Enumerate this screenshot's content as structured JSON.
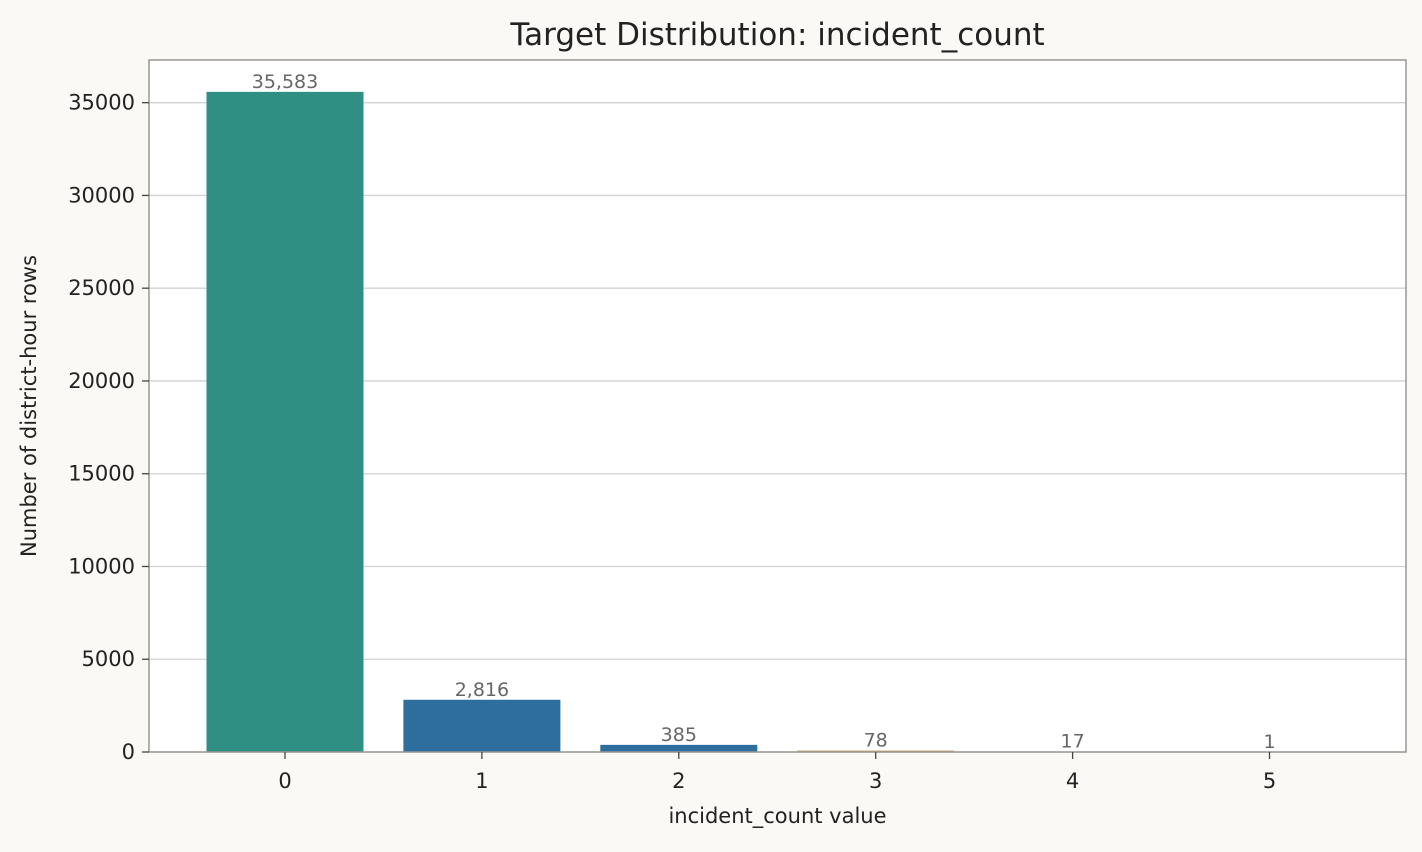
{
  "chart_data": {
    "type": "bar",
    "title": "Target Distribution: incident_count",
    "xlabel": "incident_count value",
    "ylabel": "Number of district-hour rows",
    "categories": [
      "0",
      "1",
      "2",
      "3",
      "4",
      "5"
    ],
    "values": [
      35583,
      2816,
      385,
      78,
      17,
      1
    ],
    "value_labels": [
      "35,583",
      "2,816",
      "385",
      "78",
      "17",
      "1"
    ],
    "colors": [
      "#2e8f82",
      "#2e6e9e",
      "#2e6e9e",
      "#c9a66b",
      "#6b5fa8",
      "#c46a6a"
    ],
    "ylim": [
      0,
      37300
    ],
    "yticks": [
      0,
      5000,
      10000,
      15000,
      20000,
      25000,
      30000,
      35000
    ],
    "ytick_labels": [
      "0",
      "5000",
      "10000",
      "15000",
      "20000",
      "25000",
      "30000",
      "35000"
    ],
    "grid": "y",
    "background": "#faf9f5",
    "plot_background": "#ffffff"
  }
}
